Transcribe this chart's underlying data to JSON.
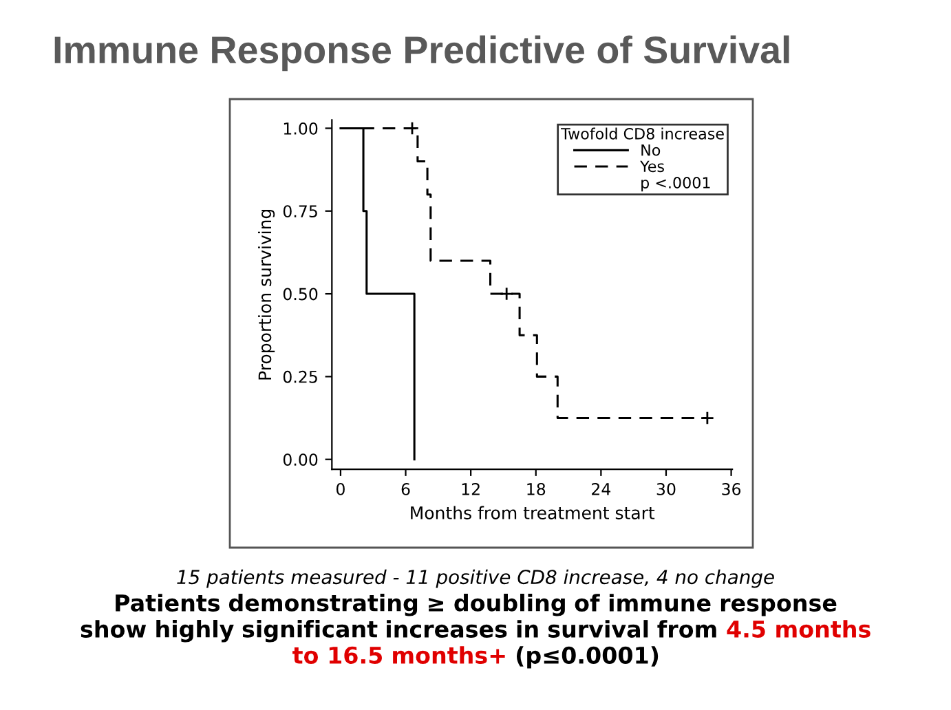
{
  "chart_data": {
    "type": "step",
    "title": "Immune Response Predictive of Survival",
    "xlabel": "Months from treatment start",
    "ylabel": "Proportion surviving",
    "legend_title": "Twofold CD8 increase",
    "series": [
      {
        "name": "No",
        "color": "#000000",
        "line_style": "solid",
        "x": [
          0,
          2.1,
          2.4,
          6.8
        ],
        "values": [
          1,
          0.75,
          0.5,
          0
        ]
      },
      {
        "name": "Yes",
        "color": "#000000",
        "line_style": "dashed",
        "x": [
          0,
          7.1,
          8.0,
          8.3,
          13.8,
          16.5,
          18.1,
          20.0,
          33.8
        ],
        "values": [
          1,
          0.9,
          0.8,
          0.6,
          0.5,
          0.375,
          0.25,
          0.125,
          0.125
        ]
      },
      {
        "type": "scatter",
        "color": "#000000",
        "marker": "cross",
        "x": [
          6.6,
          15.3,
          33.8
        ],
        "values": [
          1,
          0.5,
          0.125
        ]
      }
    ],
    "xlim": [
      -0.8,
      36.1
    ],
    "ylim": [
      -0.03,
      1.025
    ],
    "xticks": [
      0,
      6,
      12,
      18,
      24,
      30,
      36
    ],
    "yticks": [
      {
        "value": 0,
        "label": "0.00"
      },
      {
        "value": 0.25,
        "label": "0.25"
      },
      {
        "value": 0.5,
        "label": "0.50"
      },
      {
        "value": 0.75,
        "label": "0.75"
      },
      {
        "value": 1,
        "label": "1.00"
      }
    ],
    "grid": false,
    "legend": "top right",
    "annotations": [
      "p <.0001",
      "15 patients measured - 11 positive CD8 increase, 4 no change",
      "Patients demonstrating ≥ doubling of immune response show highly significant increases in survival from",
      "4.5 months to 16.5 months+",
      "(p≤0.0001)"
    ]
  }
}
